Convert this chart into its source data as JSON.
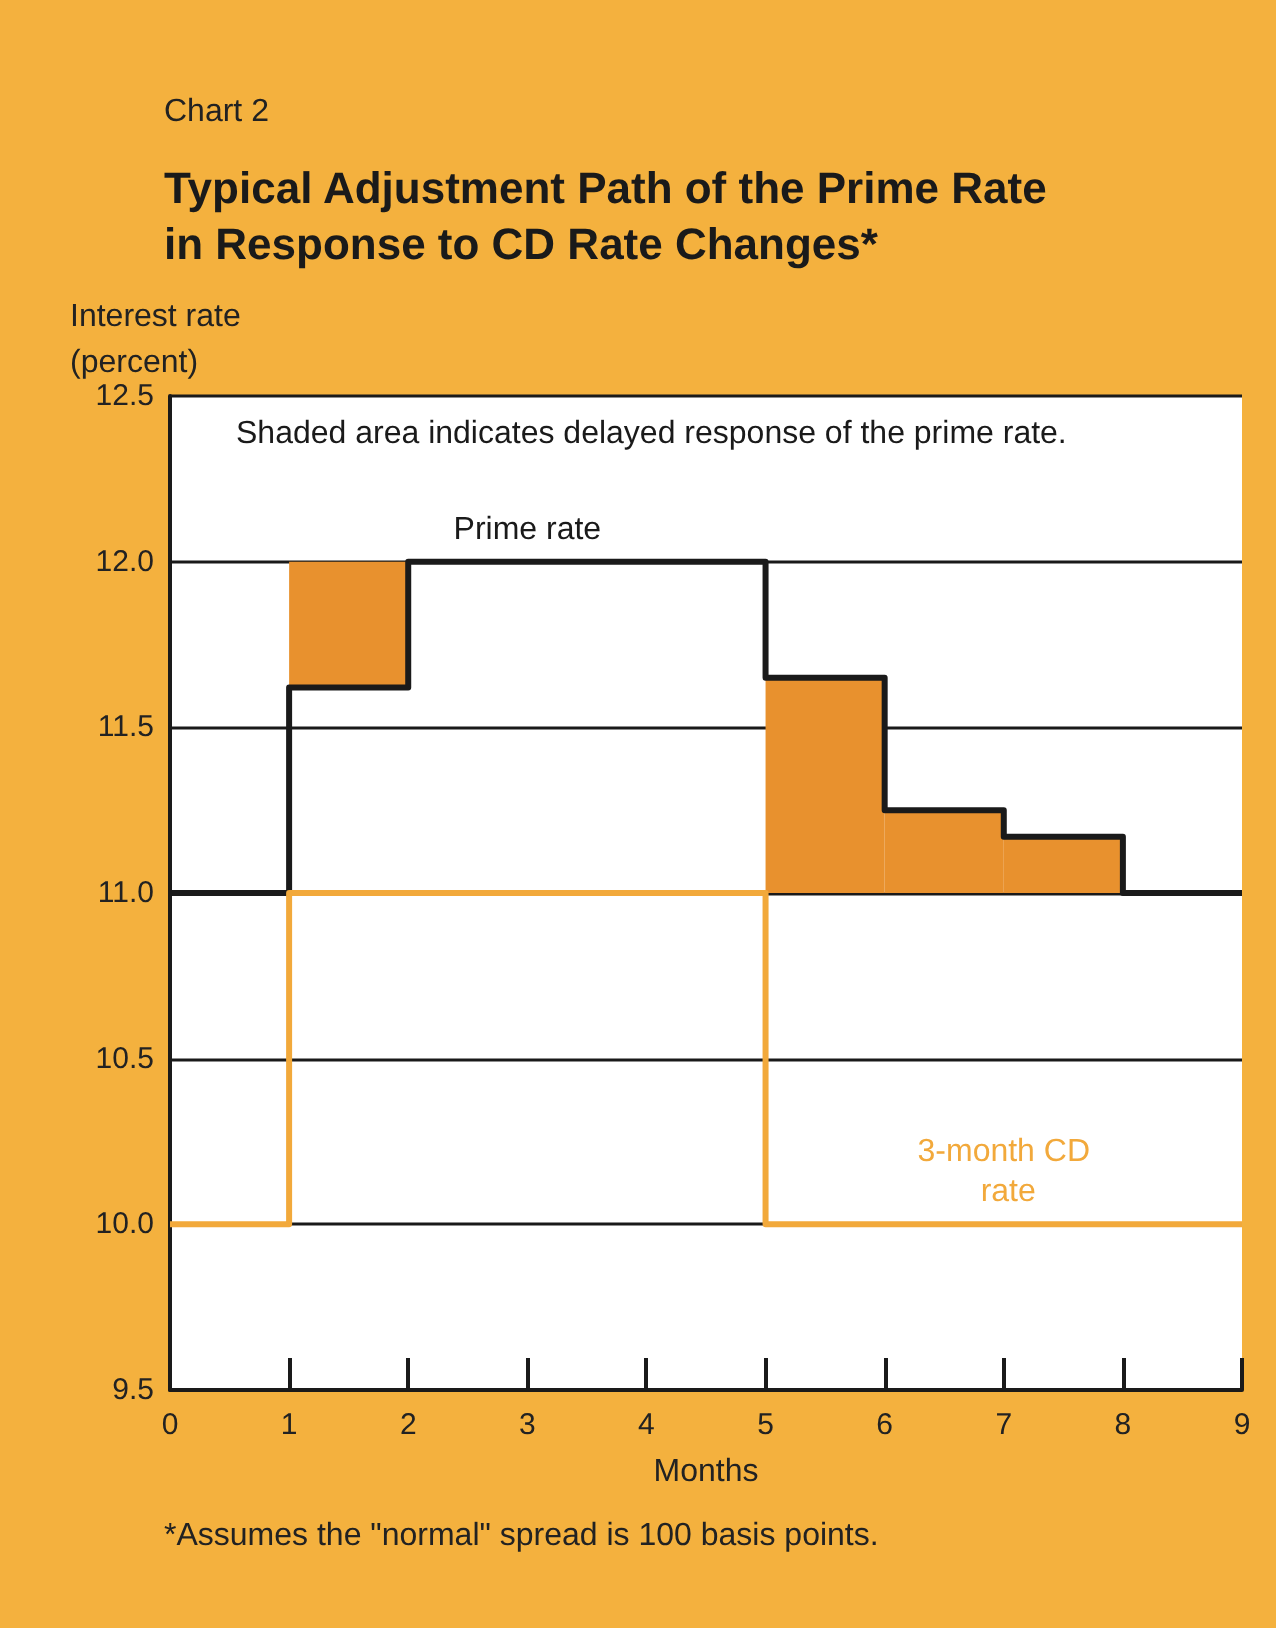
{
  "chart_data": {
    "type": "step",
    "subtitle": "Chart 2",
    "title": "Typical Adjustment Path of the Prime Rate in Response to CD Rate Changes*",
    "ylabel": "Interest rate (percent)",
    "xlabel": "Months",
    "x": [
      0,
      1,
      2,
      3,
      4,
      5,
      6,
      7,
      8,
      9
    ],
    "series": [
      {
        "name": "Prime rate",
        "color": "#1a1a1a",
        "values": [
          11.0,
          11.62,
          12.0,
          12.0,
          12.0,
          11.65,
          11.25,
          11.17,
          11.0,
          11.0
        ],
        "lower": [
          null,
          11.62,
          12.0,
          null,
          null,
          11.0,
          11.0,
          11.0,
          11.0,
          null
        ],
        "upper": [
          null,
          12.0,
          12.0,
          null,
          null,
          11.65,
          11.25,
          11.17,
          11.0,
          null
        ]
      },
      {
        "name": "3-month CD rate",
        "color": "#f2a93b",
        "values": [
          10.0,
          11.0,
          11.0,
          11.0,
          11.0,
          10.0,
          10.0,
          10.0,
          10.0,
          10.0
        ]
      }
    ],
    "xlim": [
      0,
      9
    ],
    "xticks": [
      0,
      1,
      2,
      3,
      4,
      5,
      6,
      7,
      8,
      9
    ],
    "ylim": [
      9.5,
      12.5
    ],
    "yticks": [
      {
        "value": 9.5,
        "label": "9.5"
      },
      {
        "value": 10,
        "label": "10.0"
      },
      {
        "value": 10.5,
        "label": "10.5"
      },
      {
        "value": 11,
        "label": "11.0"
      },
      {
        "value": 11.5,
        "label": "11.5"
      },
      {
        "value": 12,
        "label": "12.0"
      },
      {
        "value": 12.5,
        "label": "12.5"
      }
    ],
    "grid": "y",
    "marker": "none",
    "annotations": [
      "Shaded area indicates delayed response of the prime rate.",
      "*Assumes the \"normal\" spread is 100 basis points."
    ]
  }
}
